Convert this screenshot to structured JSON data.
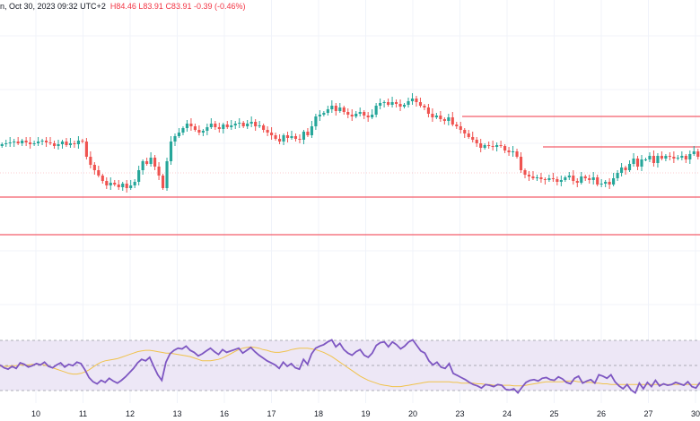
{
  "header": {
    "title_fragment": "n, Oct 30, 2023 09:32 UTC+2",
    "high": "H84.46",
    "low": "L83.91",
    "close": "C83.91",
    "change": "-0.39 (-0.46%)"
  },
  "colors": {
    "up": "#26a69a",
    "down": "#ef5350",
    "level_line": "#f23645",
    "rsi_line": "#7e57c2",
    "rsi_ma": "#f0c24b",
    "rsi_band": "#ede7f6",
    "grid": "#f0f3fa"
  },
  "chart_data": [
    {
      "type": "candlestick",
      "x_ticks": [
        "10",
        "11",
        "12",
        "13",
        "16",
        "17",
        "18",
        "19",
        "20",
        "23",
        "24",
        "25",
        "26",
        "27",
        "30"
      ],
      "y_range": [
        0,
        470
      ],
      "series": [
        {
          "name": "price",
          "values": [
            161,
            160,
            159,
            158,
            160,
            157,
            159,
            161,
            160,
            158,
            157,
            159,
            160,
            163,
            161,
            158,
            162,
            160,
            161,
            157,
            158,
            175,
            184,
            190,
            196,
            202,
            207,
            204,
            206,
            209,
            205,
            210,
            207,
            203,
            190,
            180,
            183,
            176,
            186,
            196,
            210,
            180,
            158,
            152,
            148,
            143,
            138,
            141,
            145,
            148,
            146,
            142,
            138,
            142,
            144,
            139,
            142,
            140,
            138,
            137,
            141,
            138,
            136,
            141,
            140,
            145,
            148,
            151,
            155,
            158,
            151,
            154,
            152,
            155,
            156,
            147,
            151,
            141,
            130,
            128,
            126,
            122,
            118,
            124,
            120,
            125,
            128,
            130,
            127,
            125,
            129,
            131,
            128,
            118,
            115,
            114,
            117,
            114,
            116,
            119,
            117,
            113,
            110,
            114,
            118,
            120,
            127,
            131,
            129,
            133,
            135,
            131,
            139,
            141,
            145,
            149,
            153,
            156,
            160,
            165,
            162,
            163,
            164,
            162,
            163,
            168,
            170,
            169,
            175,
            190,
            195,
            197,
            199,
            198,
            200,
            201,
            199,
            200,
            203,
            201,
            198,
            196,
            202,
            204,
            197,
            199,
            201,
            198,
            206,
            205,
            203,
            206,
            199,
            193,
            187,
            190,
            183,
            177,
            186,
            178,
            178,
            174,
            182,
            174,
            177,
            174,
            175,
            177,
            176,
            174,
            178,
            172,
            169,
            175
          ]
        },
        {
          "name": "levels",
          "values": [
            130,
            164,
            220,
            262
          ]
        }
      ]
    },
    {
      "type": "line",
      "y_range": [
        0,
        100
      ],
      "series": [
        {
          "name": "rsi",
          "values": [
            52,
            48,
            46,
            50,
            47,
            55,
            53,
            49,
            51,
            54,
            52,
            56,
            50,
            48,
            52,
            55,
            49,
            53,
            51,
            56,
            54,
            45,
            34,
            28,
            25,
            30,
            27,
            33,
            29,
            26,
            30,
            35,
            41,
            47,
            55,
            60,
            58,
            63,
            50,
            38,
            30,
            56,
            68,
            73,
            76,
            75,
            79,
            73,
            70,
            65,
            68,
            72,
            76,
            71,
            67,
            74,
            70,
            72,
            74,
            76,
            69,
            73,
            77,
            71,
            66,
            62,
            58,
            55,
            52,
            47,
            56,
            50,
            54,
            48,
            46,
            60,
            53,
            68,
            76,
            79,
            81,
            85,
            88,
            78,
            83,
            74,
            69,
            66,
            71,
            74,
            66,
            63,
            69,
            80,
            84,
            85,
            78,
            85,
            81,
            75,
            79,
            85,
            88,
            80,
            72,
            69,
            58,
            52,
            56,
            49,
            47,
            54,
            40,
            37,
            34,
            31,
            27,
            24,
            22,
            19,
            24,
            23,
            21,
            24,
            23,
            17,
            16,
            18,
            12,
            20,
            27,
            30,
            31,
            29,
            33,
            34,
            31,
            30,
            35,
            32,
            27,
            25,
            33,
            36,
            26,
            29,
            31,
            26,
            38,
            36,
            33,
            38,
            28,
            22,
            18,
            24,
            16,
            12,
            26,
            18,
            27,
            21,
            30,
            22,
            25,
            23,
            24,
            27,
            25,
            23,
            28,
            21,
            19,
            27
          ]
        },
        {
          "name": "rsi_ma",
          "values": [
            50,
            50,
            50,
            51,
            51,
            52,
            52,
            52,
            53,
            53,
            53,
            52,
            50,
            48,
            46,
            44,
            42,
            40,
            39,
            39,
            40,
            42,
            45,
            49,
            53,
            56,
            58,
            59,
            60,
            61,
            63,
            65,
            67,
            69,
            71,
            72,
            73,
            73,
            72,
            71,
            70,
            69,
            69,
            68,
            67,
            66,
            65,
            64,
            62,
            60,
            58,
            58,
            58,
            59,
            60,
            62,
            65,
            68,
            71,
            74,
            76,
            77,
            78,
            77,
            76,
            74,
            73,
            71,
            70,
            70,
            71,
            72,
            74,
            75,
            76,
            76,
            76,
            75,
            74,
            72,
            70,
            67,
            64,
            60,
            56,
            52,
            48,
            44,
            40,
            36,
            33,
            30,
            28,
            26,
            24,
            23,
            22,
            21,
            21,
            21,
            22,
            23,
            24,
            25,
            26,
            27,
            28,
            28,
            28,
            28,
            28,
            28,
            27,
            27,
            26,
            26,
            26,
            26,
            25,
            25,
            24,
            24,
            23,
            23,
            23,
            23,
            23,
            22,
            22,
            22,
            23,
            24,
            25,
            26,
            27,
            28,
            28,
            28,
            28,
            28,
            29,
            29,
            29,
            28,
            28,
            27,
            27,
            26,
            26,
            25,
            25,
            24,
            24,
            24,
            24,
            24,
            24,
            24,
            24,
            24,
            24,
            24,
            24,
            24,
            24,
            24,
            24,
            24,
            24,
            24,
            24,
            24,
            24,
            24
          ]
        }
      ]
    }
  ]
}
